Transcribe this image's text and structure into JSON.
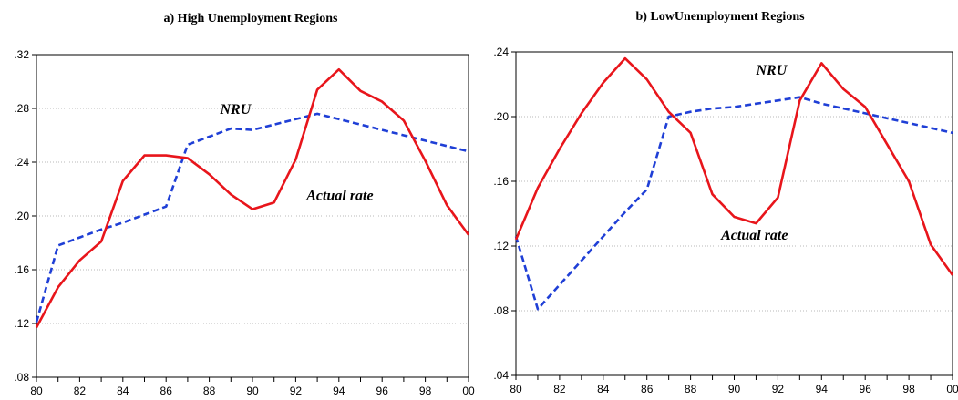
{
  "chart_data": [
    {
      "type": "line",
      "title": "a) High Unemployment Regions",
      "x_tick_labels": [
        "80",
        "82",
        "84",
        "86",
        "88",
        "90",
        "92",
        "94",
        "96",
        "98",
        "00"
      ],
      "y_tick_labels": [
        ".08",
        ".12",
        ".16",
        ".20",
        ".24",
        ".28",
        ".32"
      ],
      "xlim": [
        1980,
        2000
      ],
      "ylim": [
        0.08,
        0.32
      ],
      "x": [
        1980,
        1981,
        1982,
        1983,
        1984,
        1985,
        1986,
        1987,
        1988,
        1989,
        1990,
        1991,
        1992,
        1993,
        1994,
        1995,
        1996,
        1997,
        1998,
        1999,
        2000
      ],
      "series": [
        {
          "name": "NRU",
          "color": "#1f3fd6",
          "style": "dashed",
          "values": [
            0.121,
            0.178,
            0.184,
            0.19,
            0.195,
            0.201,
            0.207,
            0.253,
            0.259,
            0.265,
            0.264,
            0.268,
            0.272,
            0.276,
            0.272,
            0.268,
            0.264,
            0.26,
            0.256,
            0.252,
            0.248
          ]
        },
        {
          "name": "Actual rate",
          "color": "#e8151b",
          "style": "solid",
          "values": [
            0.117,
            0.147,
            0.167,
            0.181,
            0.226,
            0.245,
            0.245,
            0.243,
            0.231,
            0.216,
            0.205,
            0.21,
            0.242,
            0.294,
            0.309,
            0.293,
            0.285,
            0.271,
            0.241,
            0.208,
            0.186
          ]
        }
      ],
      "annotations": [
        {
          "text": "NRU",
          "x": 1988.5,
          "y": 0.276
        },
        {
          "text": "Actual rate",
          "x": 1992.5,
          "y": 0.212
        }
      ]
    },
    {
      "type": "line",
      "title": "b) LowUnemployment Regions",
      "x_tick_labels": [
        "80",
        "82",
        "84",
        "86",
        "88",
        "90",
        "92",
        "94",
        "96",
        "98",
        "00"
      ],
      "y_tick_labels": [
        ".04",
        ".08",
        ".12",
        ".16",
        ".20",
        ".24"
      ],
      "xlim": [
        1980,
        2000
      ],
      "ylim": [
        0.04,
        0.24
      ],
      "x": [
        1980,
        1981,
        1982,
        1983,
        1984,
        1985,
        1986,
        1987,
        1988,
        1989,
        1990,
        1991,
        1992,
        1993,
        1994,
        1995,
        1996,
        1997,
        1998,
        1999,
        2000
      ],
      "series": [
        {
          "name": "NRU",
          "color": "#1f3fd6",
          "style": "dashed",
          "values": [
            0.126,
            0.081,
            0.096,
            0.111,
            0.126,
            0.141,
            0.155,
            0.2,
            0.203,
            0.205,
            0.206,
            0.208,
            0.21,
            0.212,
            0.208,
            0.205,
            0.202,
            0.199,
            0.196,
            0.193,
            0.19
          ]
        },
        {
          "name": "Actual rate",
          "color": "#e8151b",
          "style": "solid",
          "values": [
            0.124,
            0.156,
            0.18,
            0.202,
            0.221,
            0.236,
            0.223,
            0.203,
            0.19,
            0.152,
            0.138,
            0.134,
            0.15,
            0.21,
            0.233,
            0.217,
            0.206,
            0.183,
            0.16,
            0.121,
            0.102
          ]
        }
      ],
      "annotations": [
        {
          "text": "NRU",
          "x": 1991.0,
          "y": 0.226
        },
        {
          "text": "Actual rate",
          "x": 1989.4,
          "y": 0.124
        }
      ]
    }
  ]
}
